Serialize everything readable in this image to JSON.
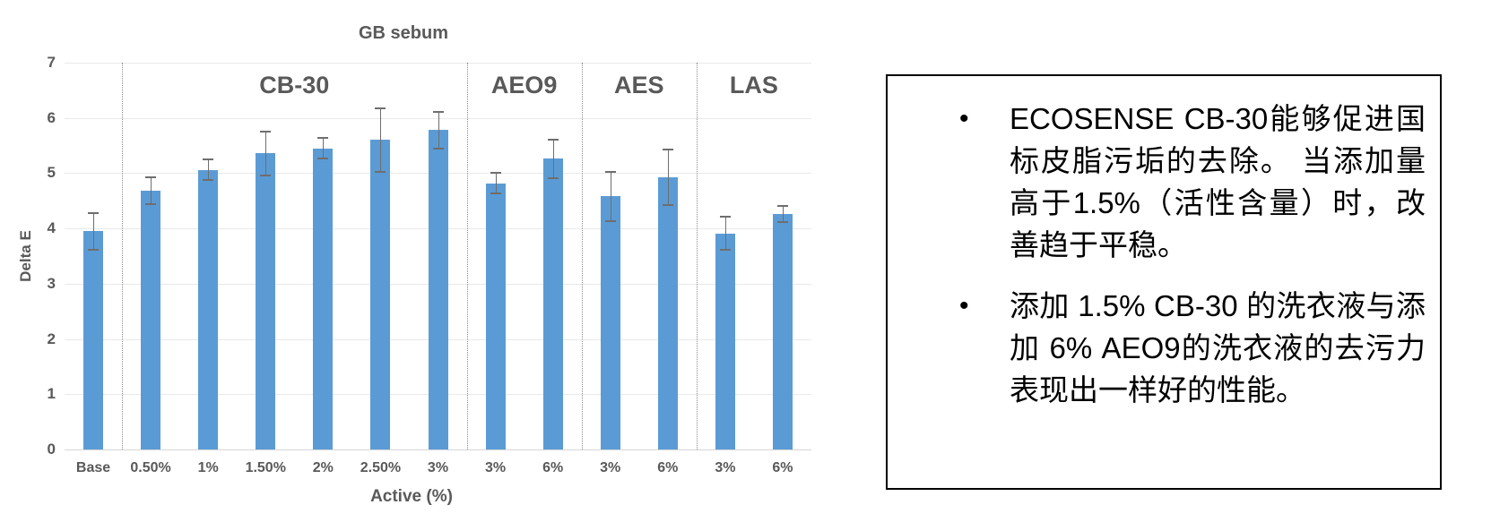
{
  "chart_data": {
    "type": "bar",
    "title": "GB sebum",
    "xlabel": "Active (%)",
    "ylabel": "Delta E",
    "ylim": [
      0,
      7
    ],
    "yticks": [
      0,
      1,
      2,
      3,
      4,
      5,
      6,
      7
    ],
    "grid": true,
    "legend": "none",
    "categories": [
      "Base",
      "0.50%",
      "1%",
      "1.50%",
      "2%",
      "2.50%",
      "3%",
      "3%",
      "6%",
      "3%",
      "6%",
      "3%",
      "6%"
    ],
    "values": [
      3.95,
      4.68,
      5.06,
      5.36,
      5.45,
      5.6,
      5.78,
      4.82,
      5.26,
      4.58,
      4.93,
      3.91,
      4.26
    ],
    "errors": [
      0.33,
      0.24,
      0.19,
      0.4,
      0.19,
      0.57,
      0.33,
      0.19,
      0.35,
      0.45,
      0.5,
      0.3,
      0.15
    ],
    "groups": [
      {
        "label": "CB-30",
        "start": 1,
        "end": 6
      },
      {
        "label": "AEO9",
        "start": 7,
        "end": 8
      },
      {
        "label": "AES",
        "start": 9,
        "end": 10
      },
      {
        "label": "LAS",
        "start": 11,
        "end": 12
      }
    ],
    "colors": {
      "bar": "#5B9BD5",
      "error_bar": "#6e6e6e",
      "gridline": "#e9e9e9",
      "baseline": "#d6d6d6",
      "axis_text": "#595959",
      "divider": "#8c8c8c"
    }
  },
  "notes_box": {
    "border_color": "#000000",
    "bullet_glyph": "•",
    "bullets": [
      "ECOSENSE CB-30能够促进国标皮脂污垢的去除。 当添加量高于1.5%（活性含量）时，改善趋于平稳。",
      "添加 1.5% CB-30 的洗衣液与添加 6% AEO9的洗衣液的去污力表现出一样好的性能。"
    ]
  }
}
